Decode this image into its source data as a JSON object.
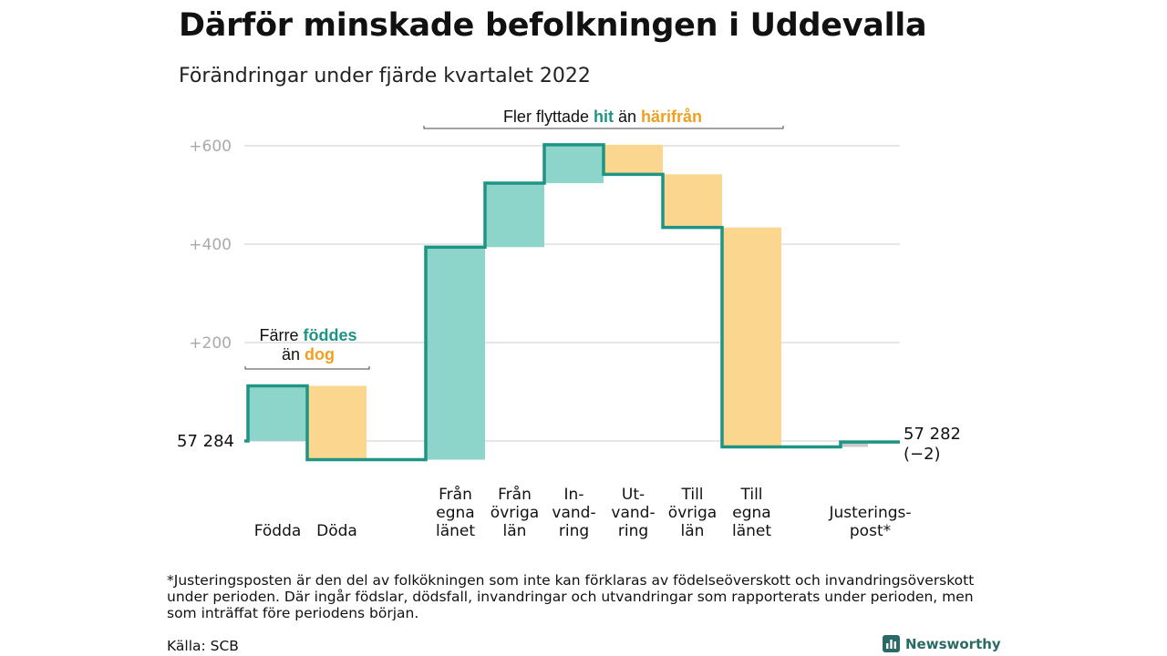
{
  "title": "Därför minskade befolkningen i Uddevalla",
  "subtitle": "Förändringar under fjärde kvartalet 2022",
  "chart_data": {
    "type": "waterfall",
    "baseline": 57284,
    "ylim": [
      -40,
      600
    ],
    "yticks": [
      {
        "value": 200,
        "label": "+200"
      },
      {
        "value": 400,
        "label": "+400"
      },
      {
        "value": 600,
        "label": "+600"
      }
    ],
    "grid": true,
    "start_label": "57 284",
    "end_label_lines": [
      "57 282",
      "(−2)"
    ],
    "steps": [
      {
        "label_lines": [
          "Födda"
        ],
        "delta": 112,
        "kind": "in"
      },
      {
        "label_lines": [
          "Döda"
        ],
        "delta": -150,
        "kind": "out"
      },
      {
        "label_lines": [
          "Från",
          "egna",
          "länet"
        ],
        "delta": 432,
        "kind": "in"
      },
      {
        "label_lines": [
          "Från",
          "övriga",
          "län"
        ],
        "delta": 130,
        "kind": "in"
      },
      {
        "label_lines": [
          "In-",
          "vand-",
          "ring"
        ],
        "delta": 78,
        "kind": "in"
      },
      {
        "label_lines": [
          "Ut-",
          "vand-",
          "ring"
        ],
        "delta": -60,
        "kind": "out"
      },
      {
        "label_lines": [
          "Till",
          "övriga",
          "län"
        ],
        "delta": -108,
        "kind": "out"
      },
      {
        "label_lines": [
          "Till",
          "egna",
          "länet"
        ],
        "delta": -446,
        "kind": "out"
      },
      {
        "label_lines": [
          "Justerings-",
          "post*"
        ],
        "delta": 10,
        "kind": "adj"
      }
    ],
    "annotations": [
      {
        "parts": [
          {
            "text": "Färre ",
            "style": "plain"
          },
          {
            "text": "föddes",
            "style": "in"
          }
        ],
        "parts2": [
          {
            "text": "än ",
            "style": "plain"
          },
          {
            "text": "dog",
            "style": "out"
          }
        ]
      },
      {
        "parts": [
          {
            "text": "Fler flyttade ",
            "style": "plain"
          },
          {
            "text": "hit",
            "style": "in"
          },
          {
            "text": " än ",
            "style": "plain"
          },
          {
            "text": "härifrån",
            "style": "out"
          }
        ]
      }
    ]
  },
  "colors": {
    "in_fill": "#8dd4cb",
    "out_fill": "#fbd68e",
    "adj_fill": "#c8c8c8",
    "line": "#1e9484",
    "in_text": "#1e9484",
    "out_text": "#f0a020",
    "grid": "#dddddd",
    "tick_text": "#aaaaaa"
  },
  "footnote": "*Justeringsposten är den del av folkökningen som inte kan förklaras av födelseöverskott och invandringsöverskott under perioden. Där ingår födslar, dödsfall, invandringar och utvandringar som rapporterats under perioden, men som inträffat före periodens början.",
  "source": "Källa: SCB",
  "brand": {
    "name": "Newsworthy",
    "icon": "newsworthy-logo-icon"
  }
}
